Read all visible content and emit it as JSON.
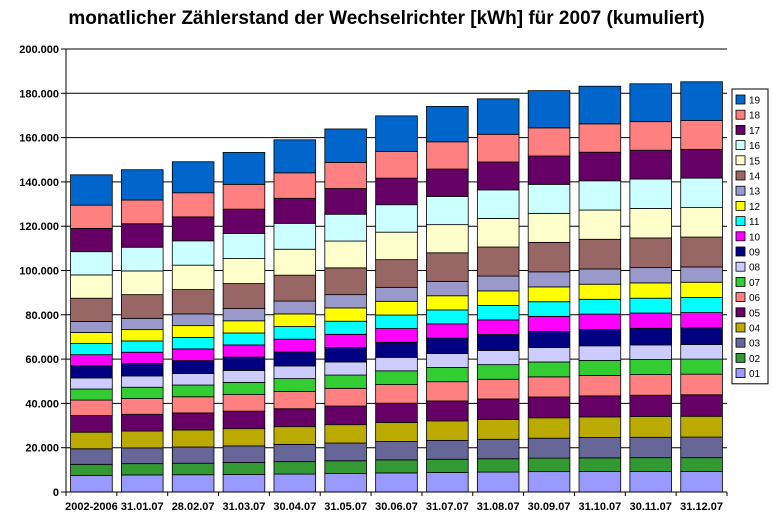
{
  "chart_data": {
    "type": "bar",
    "stacked": true,
    "title": "monatlicher Zählerstand der Wechselrichter [kWh] für 2007 (kumuliert)",
    "xlabel": "",
    "ylabel": "",
    "ylim": [
      0,
      200000
    ],
    "y_ticks": [
      "0",
      "20.000",
      "40.000",
      "60.000",
      "80.000",
      "100.000",
      "120.000",
      "140.000",
      "160.000",
      "180.000",
      "200.000"
    ],
    "y_tick_values": [
      0,
      20000,
      40000,
      60000,
      80000,
      100000,
      120000,
      140000,
      160000,
      180000,
      200000
    ],
    "grid": true,
    "legend_position": "right",
    "plot_background": "#ffffff",
    "categories": [
      "2002-2006",
      "31.01.07",
      "28.02.07",
      "31.03.07",
      "30.04.07",
      "31.05.07",
      "30.06.07",
      "31.07.07",
      "31.08.07",
      "30.09.07",
      "31.10.07",
      "30.11.07",
      "31.12.07"
    ],
    "series": [
      {
        "name": "01",
        "color": "#9999ff",
        "values": [
          7500,
          7700,
          7800,
          7900,
          8100,
          8300,
          8600,
          8800,
          9000,
          9200,
          9300,
          9300,
          9300
        ]
      },
      {
        "name": "02",
        "color": "#339933",
        "values": [
          5000,
          5100,
          5200,
          5400,
          5600,
          5800,
          5900,
          6000,
          6000,
          6100,
          6100,
          6200,
          6200
        ]
      },
      {
        "name": "03",
        "color": "#666699",
        "values": [
          7000,
          7100,
          7300,
          7500,
          7800,
          8000,
          8300,
          8500,
          8800,
          9000,
          9200,
          9200,
          9300
        ]
      },
      {
        "name": "04",
        "color": "#bbaa00",
        "values": [
          7500,
          7600,
          7700,
          7800,
          8000,
          8300,
          8600,
          8800,
          9000,
          9200,
          9300,
          9400,
          9400
        ]
      },
      {
        "name": "05",
        "color": "#660066",
        "values": [
          7500,
          7600,
          7700,
          7900,
          8100,
          8400,
          8700,
          9000,
          9200,
          9400,
          9500,
          9600,
          9700
        ]
      },
      {
        "name": "06",
        "color": "#ff8080",
        "values": [
          7000,
          7100,
          7300,
          7500,
          7800,
          8000,
          8400,
          8700,
          8900,
          9100,
          9200,
          9300,
          9300
        ]
      },
      {
        "name": "07",
        "color": "#33cc33",
        "values": [
          5000,
          5100,
          5300,
          5500,
          5800,
          6000,
          6200,
          6400,
          6600,
          6700,
          6800,
          6800,
          6800
        ]
      },
      {
        "name": "08",
        "color": "#ccccff",
        "values": [
          5000,
          5100,
          5200,
          5400,
          5700,
          5900,
          6100,
          6300,
          6400,
          6500,
          6600,
          6600,
          6600
        ]
      },
      {
        "name": "09",
        "color": "#000080",
        "values": [
          5500,
          5600,
          5800,
          6000,
          6300,
          6500,
          6800,
          7000,
          7200,
          7300,
          7400,
          7500,
          7500
        ]
      },
      {
        "name": "10",
        "color": "#ff00ff",
        "values": [
          5000,
          5100,
          5300,
          5500,
          5800,
          6000,
          6200,
          6400,
          6600,
          6800,
          6900,
          6900,
          6900
        ]
      },
      {
        "name": "11",
        "color": "#00ffff",
        "values": [
          5000,
          5100,
          5200,
          5400,
          5700,
          5900,
          6100,
          6300,
          6500,
          6600,
          6700,
          6700,
          6800
        ]
      },
      {
        "name": "12",
        "color": "#ffff00",
        "values": [
          5000,
          5100,
          5300,
          5500,
          5700,
          6000,
          6200,
          6400,
          6600,
          6700,
          6800,
          6900,
          6900
        ]
      },
      {
        "name": "13",
        "color": "#9999cc",
        "values": [
          5000,
          5100,
          5300,
          5500,
          5800,
          6000,
          6300,
          6500,
          6700,
          6800,
          6900,
          6900,
          6900
        ]
      },
      {
        "name": "14",
        "color": "#996666",
        "values": [
          10500,
          10700,
          11000,
          11300,
          11700,
          12100,
          12500,
          12900,
          13100,
          13300,
          13400,
          13400,
          13500
        ]
      },
      {
        "name": "15",
        "color": "#ffffcc",
        "values": [
          10500,
          10700,
          11000,
          11300,
          11700,
          12100,
          12400,
          12700,
          12900,
          13100,
          13200,
          13300,
          13300
        ]
      },
      {
        "name": "16",
        "color": "#ccffff",
        "values": [
          10500,
          10700,
          11000,
          11300,
          11700,
          12100,
          12400,
          12700,
          12900,
          13100,
          13200,
          13300,
          13300
        ]
      },
      {
        "name": "17",
        "color": "#660066",
        "values": [
          10500,
          10600,
          10800,
          11000,
          11300,
          11600,
          12000,
          12400,
          12600,
          12800,
          12900,
          13000,
          13000
        ]
      },
      {
        "name": "18",
        "color": "#ff8080",
        "values": [
          10500,
          10700,
          10900,
          11200,
          11500,
          11800,
          12100,
          12300,
          12500,
          12700,
          12800,
          12900,
          13000
        ]
      },
      {
        "name": "19",
        "color": "#0066cc",
        "values": [
          13700,
          13700,
          14000,
          14400,
          14900,
          15100,
          16000,
          16000,
          16000,
          16800,
          17000,
          17100,
          17500
        ]
      }
    ]
  }
}
